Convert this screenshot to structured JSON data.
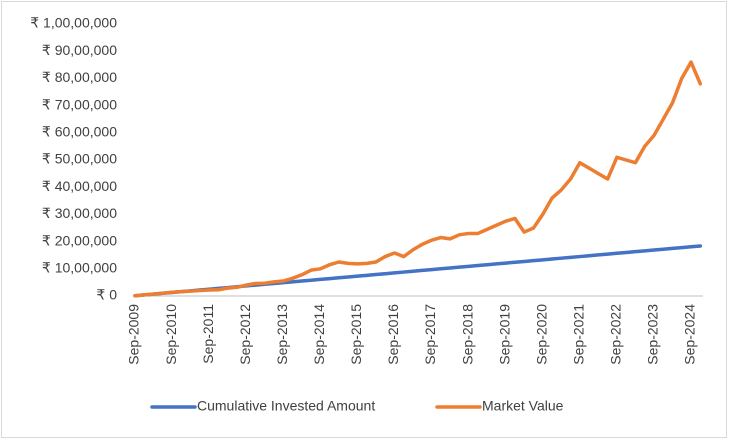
{
  "chart_data": {
    "type": "line",
    "categories": [
      "Sep-2009",
      null,
      null,
      null,
      "Sep-2010",
      null,
      null,
      null,
      "Sep-2011",
      null,
      null,
      null,
      "Sep-2012",
      null,
      null,
      null,
      "Sep-2013",
      null,
      null,
      null,
      "Sep-2014",
      null,
      null,
      null,
      "Sep-2015",
      null,
      null,
      null,
      "Sep-2016",
      null,
      null,
      null,
      "Sep-2017",
      null,
      null,
      null,
      "Sep-2018",
      null,
      null,
      null,
      "Sep-2019",
      null,
      null,
      null,
      "Sep-2020",
      null,
      null,
      null,
      "Sep-2021",
      null,
      null,
      null,
      "Sep-2022",
      null,
      null,
      null,
      "Sep-2023",
      null,
      null,
      null,
      "Sep-2024",
      null
    ],
    "series": [
      {
        "name": "Cumulative Invested Amount",
        "color": "#4472c4",
        "values": [
          10000,
          40000,
          70000,
          100000,
          130000,
          160000,
          190000,
          220000,
          250000,
          280000,
          310000,
          340000,
          370000,
          400000,
          430000,
          460000,
          490000,
          520000,
          550000,
          580000,
          610000,
          640000,
          670000,
          700000,
          730000,
          760000,
          790000,
          820000,
          850000,
          880000,
          910000,
          940000,
          970000,
          1000000,
          1030000,
          1060000,
          1090000,
          1120000,
          1150000,
          1180000,
          1210000,
          1240000,
          1270000,
          1300000,
          1330000,
          1360000,
          1390000,
          1420000,
          1450000,
          1480000,
          1510000,
          1540000,
          1570000,
          1600000,
          1630000,
          1660000,
          1690000,
          1720000,
          1750000,
          1780000,
          1810000,
          1840000
        ]
      },
      {
        "name": "Market Value",
        "color": "#ed7d31",
        "values": [
          10000,
          40000,
          70000,
          100000,
          140000,
          160000,
          180000,
          200000,
          220000,
          230000,
          290000,
          320000,
          400000,
          460000,
          470000,
          520000,
          550000,
          650000,
          780000,
          950000,
          1000000,
          1150000,
          1250000,
          1200000,
          1180000,
          1200000,
          1250000,
          1450000,
          1580000,
          1450000,
          1700000,
          1900000,
          2050000,
          2150000,
          2100000,
          2250000,
          2300000,
          2300000,
          2450000,
          2600000,
          2750000,
          2850000,
          2350000,
          2500000,
          3000000,
          3600000,
          3900000,
          4300000,
          4900000,
          4700000,
          4500000,
          4300000,
          5100000,
          5000000,
          4900000,
          5500000,
          5900000,
          6500000,
          7100000,
          8000000,
          8600000,
          7800000
        ]
      }
    ],
    "ylim": [
      0,
      10000000
    ],
    "yticks": [
      {
        "value": 0,
        "label": "₹ 0"
      },
      {
        "value": 1000000,
        "label": "₹ 10,00,000"
      },
      {
        "value": 2000000,
        "label": "₹ 20,00,000"
      },
      {
        "value": 3000000,
        "label": "₹ 30,00,000"
      },
      {
        "value": 4000000,
        "label": "₹ 40,00,000"
      },
      {
        "value": 5000000,
        "label": "₹ 50,00,000"
      },
      {
        "value": 6000000,
        "label": "₹ 60,00,000"
      },
      {
        "value": 7000000,
        "label": "₹ 70,00,000"
      },
      {
        "value": 8000000,
        "label": "₹ 80,00,000"
      },
      {
        "value": 9000000,
        "label": "₹ 90,00,000"
      },
      {
        "value": 10000000,
        "label": "₹ 1,00,00,000"
      }
    ],
    "grid": false,
    "legend": "bottom"
  }
}
